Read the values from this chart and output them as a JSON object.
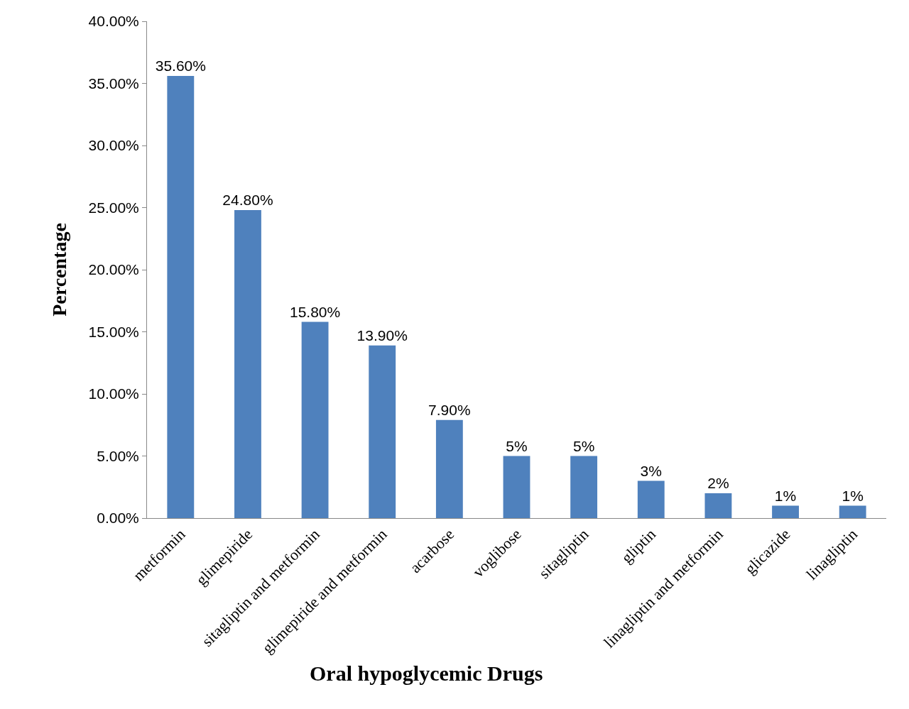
{
  "chart_data": {
    "type": "bar",
    "xlabel": "Oral hypoglycemic Drugs",
    "ylabel": "Percentage",
    "categories": [
      "metformin",
      "glimepiride",
      "sitagliptin and metformin",
      "glimepiride and metformin",
      "acarbose",
      "voglibose",
      "sitagliptin",
      "gliptin",
      "linagliptin and metformin",
      "glicazide",
      "linagliptin"
    ],
    "values": [
      35.6,
      24.8,
      15.8,
      13.9,
      7.9,
      5,
      5,
      3,
      2,
      1,
      1
    ],
    "value_labels": [
      "35.60%",
      "24.80%",
      "15.80%",
      "13.90%",
      "7.90%",
      "5%",
      "5%",
      "3%",
      "2%",
      "1%",
      "1%"
    ],
    "color": "#4f81bd",
    "ylim": [
      0,
      40
    ],
    "yticks": [
      {
        "value": 0,
        "label": "0.00%"
      },
      {
        "value": 5,
        "label": "5.00%"
      },
      {
        "value": 10,
        "label": "10.00%"
      },
      {
        "value": 15,
        "label": "15.00%"
      },
      {
        "value": 20,
        "label": "20.00%"
      },
      {
        "value": 25,
        "label": "25.00%"
      },
      {
        "value": 30,
        "label": "30.00%"
      },
      {
        "value": 35,
        "label": "35.00%"
      },
      {
        "value": 40,
        "label": "40.00%"
      }
    ],
    "legend": false
  }
}
